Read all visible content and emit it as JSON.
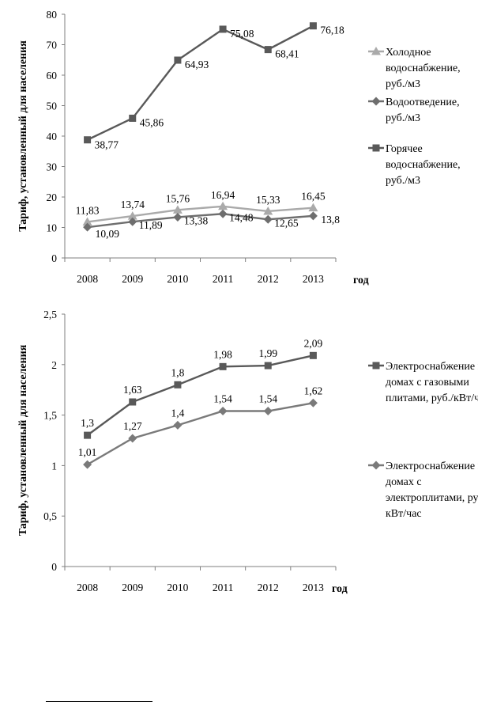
{
  "chart_data": [
    {
      "type": "line",
      "categories": [
        "2008",
        "2009",
        "2010",
        "2011",
        "2012",
        "2013"
      ],
      "ylim": [
        0,
        80
      ],
      "yticks": [
        "0",
        "10",
        "20",
        "30",
        "40",
        "50",
        "60",
        "70",
        "80"
      ],
      "ylabel": "Тариф, установленный для населения",
      "xlabel": "год",
      "legend_position": "right",
      "grid": false,
      "series": [
        {
          "name_lines": [
            "Холодное",
            "водоснабжение,",
            "руб./м3"
          ],
          "values": [
            11.83,
            13.74,
            15.76,
            16.94,
            15.33,
            16.45
          ],
          "labels": [
            "11,83",
            "13,74",
            "15,76",
            "16,94",
            "15,33",
            "16,45"
          ],
          "color": "#aaaaaa",
          "marker": "triangle"
        },
        {
          "name_lines": [
            "Водоотведение,",
            "руб./м3"
          ],
          "values": [
            10.09,
            11.89,
            13.38,
            14.48,
            12.65,
            13.8
          ],
          "labels": [
            "10,09",
            "11,89",
            "13,38",
            "14,48",
            "12,65",
            "13,8"
          ],
          "color": "#6e6e6e",
          "marker": "diamond"
        },
        {
          "name_lines": [
            "Горячее",
            "водоснабжение,",
            "руб./м3"
          ],
          "values": [
            38.77,
            45.86,
            64.93,
            75.08,
            68.41,
            76.18
          ],
          "labels": [
            "38,77",
            "45,86",
            "64,93",
            "75,08",
            "68,41",
            "76,18"
          ],
          "color": "#595959",
          "marker": "square"
        }
      ]
    },
    {
      "type": "line",
      "categories": [
        "2008",
        "2009",
        "2010",
        "2011",
        "2012",
        "2013"
      ],
      "ylim": [
        0,
        2.5
      ],
      "yticks": [
        "0",
        "0,5",
        "1",
        "1,5",
        "2",
        "2,5"
      ],
      "ylabel": "Тариф, установленный для населения",
      "xlabel": "год",
      "legend_position": "right",
      "grid": false,
      "series": [
        {
          "name_lines": [
            "Электроснабжение в",
            "домах с газовыми",
            "плитами, руб./кВт/час"
          ],
          "values": [
            1.3,
            1.63,
            1.8,
            1.98,
            1.99,
            2.09
          ],
          "labels": [
            "1,3",
            "1,63",
            "1,8",
            "1,98",
            "1,99",
            "2,09"
          ],
          "color": "#595959",
          "marker": "square"
        },
        {
          "name_lines": [
            "Электроснабжение в",
            "домах с",
            "электроплитами, руб./",
            "кВт/час"
          ],
          "values": [
            1.01,
            1.27,
            1.4,
            1.54,
            1.54,
            1.62
          ],
          "labels": [
            "1,01",
            "1,27",
            "1,4",
            "1,54",
            "1,54",
            "1,62"
          ],
          "color": "#7a7a7a",
          "marker": "diamond"
        }
      ]
    }
  ]
}
